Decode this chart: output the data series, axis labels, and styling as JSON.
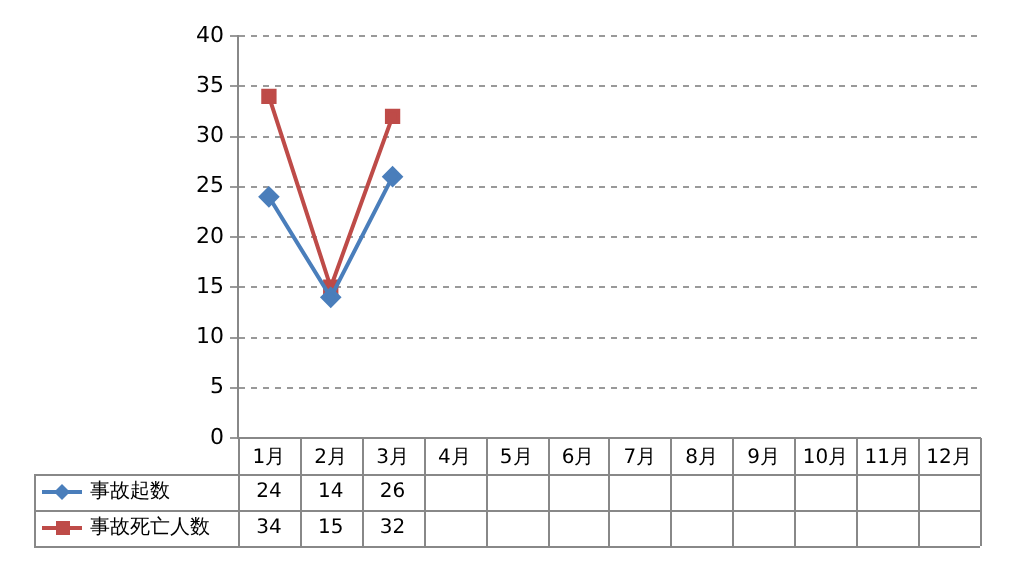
{
  "chart_data": {
    "type": "line",
    "categories": [
      "1月",
      "2月",
      "3月",
      "4月",
      "5月",
      "6月",
      "7月",
      "8月",
      "9月",
      "10月",
      "11月",
      "12月"
    ],
    "series": [
      {
        "name": "事故起数",
        "color": "#4a7ebb",
        "marker": "diamond",
        "values": [
          24,
          14,
          26,
          null,
          null,
          null,
          null,
          null,
          null,
          null,
          null,
          null
        ]
      },
      {
        "name": "事故死亡人数",
        "color": "#be4b48",
        "marker": "square",
        "values": [
          34,
          15,
          32,
          null,
          null,
          null,
          null,
          null,
          null,
          null,
          null,
          null
        ]
      }
    ],
    "ylim": [
      0,
      40
    ],
    "yticks": [
      0,
      5,
      10,
      15,
      20,
      25,
      30,
      35,
      40
    ],
    "grid": "y",
    "legend": "bottom",
    "data_labels": true
  }
}
